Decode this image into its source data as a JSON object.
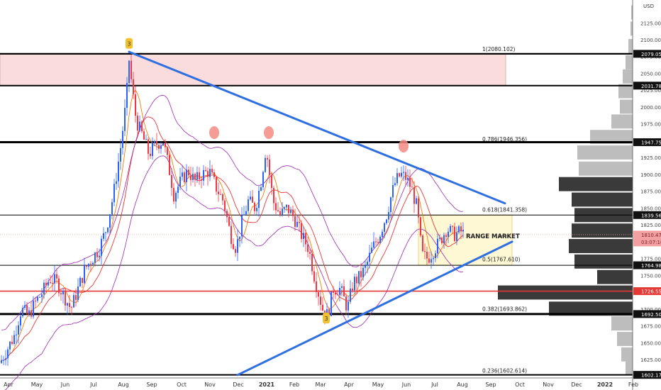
{
  "chart_data": {
    "type": "candlestick",
    "currency": "USD",
    "y_axis": {
      "min": 1600,
      "max": 2150,
      "ticks": [
        1625,
        1650,
        1675,
        1700,
        1725,
        1750,
        1775,
        1800,
        1825,
        1850,
        1875,
        1900,
        1925,
        1950,
        1975,
        2000,
        2025,
        2050,
        2075,
        2100,
        2125
      ],
      "tick_labels": [
        "1625.000",
        "1650.000",
        "1675.000",
        "1700.000",
        "1725.000",
        "1750.000",
        "1775.000",
        "1800.000",
        "1825.000",
        "1850.000",
        "1875.000",
        "1900.000",
        "1925.000",
        "1950.000",
        "1975.000",
        "2000.000",
        "2025.000",
        "2050.000",
        "2075.000",
        "2100.000",
        "2125.000"
      ]
    },
    "x_axis": {
      "labels": [
        "Apr",
        "May",
        "Jun",
        "Jul",
        "Aug",
        "Sep",
        "Oct",
        "Nov",
        "Dec",
        "2021",
        "Feb",
        "Mar",
        "Apr",
        "May",
        "Jun",
        "Jul",
        "Aug",
        "Sep",
        "Oct",
        "Nov",
        "Dec",
        "2022",
        "Feb"
      ]
    },
    "price_labels": [
      {
        "value": "2079.052",
        "price": 2079.052,
        "style": "dark"
      },
      {
        "value": "2031.784",
        "price": 2031.784,
        "style": "dark"
      },
      {
        "value": "1947.753",
        "price": 1947.753,
        "style": "dark"
      },
      {
        "value": "1839.562",
        "price": 1839.562,
        "style": "dark"
      },
      {
        "value": "1810.475",
        "price": 1810.475,
        "style": "current",
        "sub": "03:07:10"
      },
      {
        "value": "1764.984",
        "price": 1764.984,
        "style": "dark"
      },
      {
        "value": "1726.553",
        "price": 1726.553,
        "style": "red"
      },
      {
        "value": "1692.507",
        "price": 1692.507,
        "style": "dark"
      },
      {
        "value": "1602.173",
        "price": 1602.173,
        "style": "dark"
      }
    ],
    "fibonacci": [
      {
        "label": "1(2080.102)",
        "price": 2080.102
      },
      {
        "label": "0.786(1946.356)",
        "price": 1946.356
      },
      {
        "label": "0.618(1841.358)",
        "price": 1841.358
      },
      {
        "label": "0.5(1767.610)",
        "price": 1767.61
      },
      {
        "label": "0.382(1693.862)",
        "price": 1693.862
      },
      {
        "label": "0.236(1602.614)",
        "price": 1602.614
      }
    ],
    "annotations": {
      "range_label": "RANGE MARKET",
      "marker_labels": [
        "3",
        "3"
      ]
    },
    "colors": {
      "bull": "#2962ff",
      "bear": "#f23645",
      "trend": "#2f6fe0",
      "supply_zone": "#fadcdc",
      "range_box": "#fff8d4",
      "ma_fast": "#f57c00",
      "ma_slow": "#e53935",
      "envelope": "#9c27b0"
    }
  }
}
